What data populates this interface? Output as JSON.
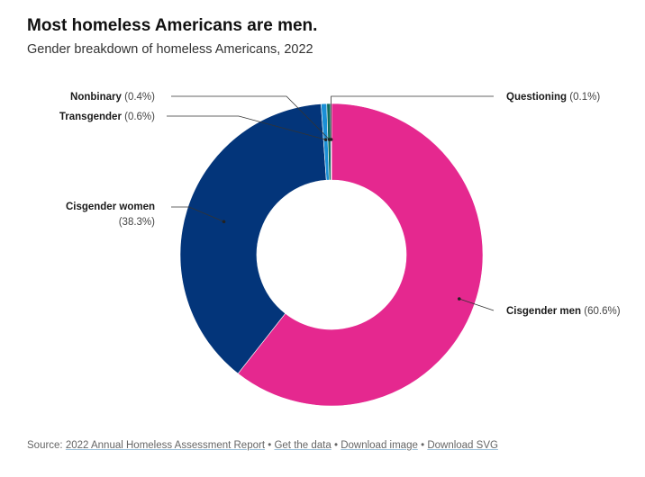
{
  "header": {
    "title": "Most homeless Americans are men.",
    "subtitle": "Gender breakdown of homeless Americans, 2022"
  },
  "chart_data": {
    "type": "pie",
    "donut": true,
    "title": "Most homeless Americans are men.",
    "subtitle": "Gender breakdown of homeless Americans, 2022",
    "unit": "%",
    "slices": [
      {
        "label": "Cisgender men",
        "value": 60.6,
        "pct_label": "(60.6%)",
        "color": "#e5288f"
      },
      {
        "label": "Cisgender women",
        "value": 38.3,
        "pct_label": "(38.3%)",
        "color": "#03357a"
      },
      {
        "label": "Transgender",
        "value": 0.6,
        "pct_label": "(0.6%)",
        "color": "#1a8fd6"
      },
      {
        "label": "Nonbinary",
        "value": 0.4,
        "pct_label": "(0.4%)",
        "color": "#0f6b5c"
      },
      {
        "label": "Questioning",
        "value": 0.1,
        "pct_label": "(0.1%)",
        "color": "#7b3fa0"
      }
    ]
  },
  "footer": {
    "source_prefix": "Source:",
    "source_link": "2022 Annual Homeless Assessment Report",
    "get_data": "Get the data",
    "download_image": "Download image",
    "download_svg": "Download SVG",
    "separator": "•"
  }
}
